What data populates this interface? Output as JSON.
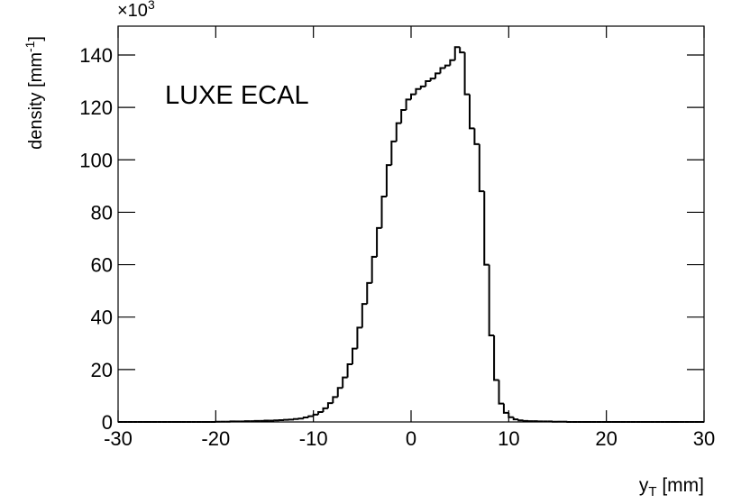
{
  "chart_data": {
    "type": "histogram",
    "annotation": "LUXE ECAL",
    "xlabel": {
      "main": "y",
      "sub": "T",
      "rest": " [mm]"
    },
    "ylabel": {
      "main": "density [mm",
      "sup": "-1",
      "rest": "]"
    },
    "y_multiplier": {
      "base": "×10",
      "exponent": "3"
    },
    "color": "#000000",
    "bins": [
      -30,
      -29.5,
      -29,
      -28.5,
      -28,
      -27.5,
      -27,
      -26.5,
      -26,
      -25.5,
      -25,
      -24.5,
      -24,
      -23.5,
      -23,
      -22.5,
      -22,
      -21.5,
      -21,
      -20.5,
      -20,
      -19.5,
      -19,
      -18.5,
      -18,
      -17.5,
      -17,
      -16.5,
      -16,
      -15.5,
      -15,
      -14.5,
      -14,
      -13.5,
      -13,
      -12.5,
      -12,
      -11.5,
      -11,
      -10.5,
      -10,
      -9.5,
      -9,
      -8.5,
      -8,
      -7.5,
      -7,
      -6.5,
      -6,
      -5.5,
      -5,
      -4.5,
      -4,
      -3.5,
      -3,
      -2.5,
      -2,
      -1.5,
      -1,
      -0.5,
      0,
      0.5,
      1,
      1.5,
      2,
      2.5,
      3,
      3.5,
      4,
      4.5,
      5,
      5.5,
      6,
      6.5,
      7,
      7.5,
      8,
      8.5,
      9,
      9.5,
      10,
      10.5,
      11,
      11.5,
      12,
      12.5,
      13,
      13.5,
      14,
      14.5,
      15,
      15.5,
      16,
      16.5,
      17,
      17.5,
      18,
      18.5,
      19,
      19.5,
      20,
      20.5,
      21,
      21.5,
      22,
      22.5,
      23,
      23.5,
      24,
      24.5,
      25,
      25.5,
      26,
      26.5,
      27,
      27.5,
      28,
      28.5,
      29,
      29.5,
      30
    ],
    "counts": [
      0,
      0,
      0,
      0,
      0,
      0,
      0,
      0,
      0,
      0,
      0,
      0,
      0,
      0,
      0,
      0,
      0,
      0,
      0,
      0,
      0.1,
      0.1,
      0.1,
      0.2,
      0.2,
      0.2,
      0.3,
      0.3,
      0.4,
      0.4,
      0.5,
      0.5,
      0.6,
      0.7,
      0.8,
      0.9,
      1.1,
      1.3,
      1.7,
      2.2,
      2.8,
      3.8,
      5.2,
      7.2,
      9.5,
      13,
      17,
      22,
      28,
      36,
      45,
      53,
      63,
      74,
      86,
      98,
      107,
      114,
      119,
      123,
      125,
      127,
      128,
      130,
      131,
      133,
      135,
      136,
      138,
      143,
      141,
      125,
      112,
      106,
      88,
      60,
      33,
      16,
      7,
      3.5,
      1.8,
      1.0,
      0.6,
      0.4,
      0.3,
      0.3,
      0.2,
      0.2,
      0.2,
      0.1,
      0.1,
      0.1,
      0,
      0,
      0,
      0,
      0,
      0,
      0,
      0,
      0,
      0,
      0,
      0,
      0,
      0,
      0,
      0,
      0,
      0,
      0,
      0,
      0,
      0,
      0,
      0,
      0,
      0,
      0,
      0
    ],
    "xlim": [
      -30,
      30
    ],
    "ylim": [
      0,
      151
    ],
    "xticks": [
      -30,
      -20,
      -10,
      0,
      10,
      20,
      30
    ],
    "yticks": [
      0,
      20,
      40,
      60,
      80,
      100,
      120,
      140
    ]
  }
}
